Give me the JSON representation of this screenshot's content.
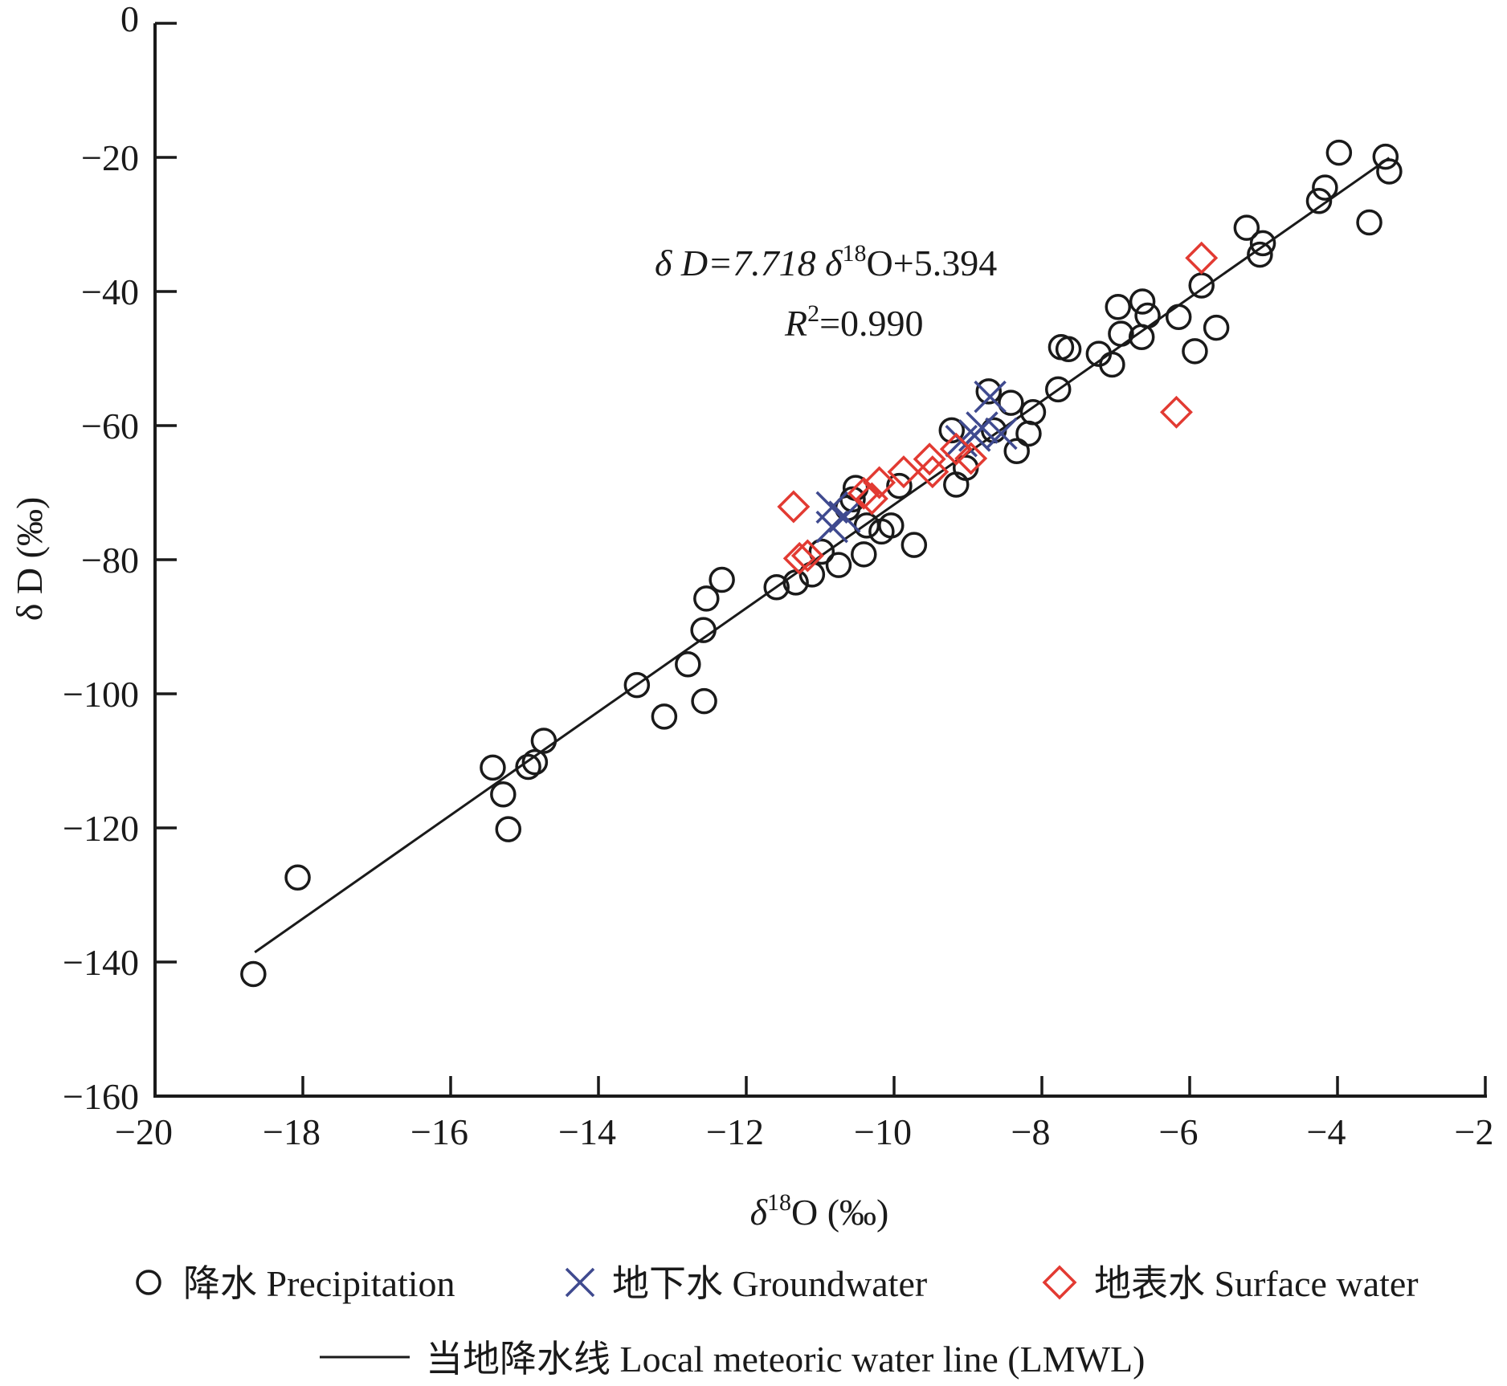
{
  "chart_data": {
    "type": "scatter",
    "xlabel": "δ18O (‰)",
    "xlabel_parts": {
      "delta": "δ",
      "sup": "18",
      "rest": "O (‰)"
    },
    "ylabel": "δ D (‰)",
    "xlim": [
      -20,
      -2
    ],
    "ylim": [
      -160,
      0
    ],
    "xticks": [
      -20,
      -18,
      -16,
      -14,
      -12,
      -10,
      -8,
      -6,
      -4,
      -2
    ],
    "yticks": [
      0,
      -20,
      -40,
      -60,
      -80,
      -100,
      -120,
      -140,
      -160
    ],
    "xtick_labels": [
      "−20",
      "−18",
      "−16",
      "−14",
      "−12",
      "−10",
      "−8",
      "−6",
      "−4",
      "−2"
    ],
    "ytick_labels": [
      "0",
      "−20",
      "−40",
      "−60",
      "−80",
      "−100",
      "−120",
      "−140",
      "−160"
    ],
    "grid": false,
    "legend_placement": "bottom",
    "annotation": {
      "equation_a": "δ D=7.718 δ",
      "equation_sup": "18",
      "equation_b": "O+5.394",
      "r2_label": "R",
      "r2_sup": "2",
      "r2_value": "=0.990"
    },
    "fit_line": {
      "name": "当地降水线 Local meteoric water line (LMWL)",
      "slope": 7.718,
      "intercept": 5.394,
      "x_range": [
        -18.65,
        -3.3
      ],
      "color": "#1a1a1a"
    },
    "series": [
      {
        "name": "降水 Precipitation",
        "marker": "circle",
        "color": "#1a1a1a",
        "points": [
          [
            -18.67,
            -141.8
          ],
          [
            -18.07,
            -127.4
          ],
          [
            -15.43,
            -111
          ],
          [
            -15.29,
            -115
          ],
          [
            -15.22,
            -120.2
          ],
          [
            -14.95,
            -110.9
          ],
          [
            -14.86,
            -110.2
          ],
          [
            -14.74,
            -107
          ],
          [
            -13.48,
            -98.7
          ],
          [
            -13.11,
            -103.4
          ],
          [
            -12.79,
            -95.6
          ],
          [
            -12.58,
            -90.5
          ],
          [
            -12.54,
            -85.8
          ],
          [
            -12.57,
            -101.1
          ],
          [
            -12.33,
            -83
          ],
          [
            -11.59,
            -84.1
          ],
          [
            -11.33,
            -83.4
          ],
          [
            -11.11,
            -82.2
          ],
          [
            -10.98,
            -78.8
          ],
          [
            -10.75,
            -80.8
          ],
          [
            -10.63,
            -72.3
          ],
          [
            -10.56,
            -71
          ],
          [
            -10.52,
            -69.3
          ],
          [
            -10.41,
            -79.2
          ],
          [
            -10.37,
            -74.9
          ],
          [
            -10.17,
            -75.8
          ],
          [
            -10.04,
            -74.9
          ],
          [
            -9.93,
            -69
          ],
          [
            -9.73,
            -77.8
          ],
          [
            -9.22,
            -60.7
          ],
          [
            -9.16,
            -68.8
          ],
          [
            -9.03,
            -66.3
          ],
          [
            -8.72,
            -54.9
          ],
          [
            -8.65,
            -60.7
          ],
          [
            -8.42,
            -56.6
          ],
          [
            -8.34,
            -63.8
          ],
          [
            -8.18,
            -61.2
          ],
          [
            -8.12,
            -58
          ],
          [
            -7.78,
            -54.6
          ],
          [
            -7.74,
            -48.3
          ],
          [
            -7.64,
            -48.6
          ],
          [
            -7.23,
            -49.3
          ],
          [
            -7.05,
            -50.9
          ],
          [
            -6.97,
            -42.3
          ],
          [
            -6.93,
            -46.3
          ],
          [
            -6.65,
            -46.8
          ],
          [
            -6.64,
            -41.5
          ],
          [
            -6.57,
            -43.6
          ],
          [
            -6.15,
            -43.8
          ],
          [
            -5.93,
            -48.9
          ],
          [
            -5.84,
            -39.1
          ],
          [
            -5.64,
            -45.4
          ],
          [
            -5.23,
            -30.5
          ],
          [
            -5.05,
            -34.5
          ],
          [
            -5.01,
            -32.8
          ],
          [
            -4.25,
            -26.5
          ],
          [
            -4.17,
            -24.5
          ],
          [
            -3.98,
            -19.3
          ],
          [
            -3.57,
            -29.7
          ],
          [
            -3.35,
            -19.9
          ],
          [
            -3.3,
            -22.1
          ]
        ]
      },
      {
        "name": "地下水 Groundwater",
        "marker": "x",
        "color": "#3f4a8f",
        "points": [
          [
            -8.7,
            -55.7
          ],
          [
            -8.91,
            -61.5
          ],
          [
            -8.81,
            -60.3
          ],
          [
            -8.55,
            -61.2
          ],
          [
            -9.09,
            -62.3
          ],
          [
            -10.84,
            -72.2
          ],
          [
            -10.84,
            -75.1
          ],
          [
            -10.67,
            -73.6
          ]
        ]
      },
      {
        "name": "地表水 Surface water",
        "marker": "diamond",
        "color": "#e23a32",
        "points": [
          [
            -5.84,
            -35
          ],
          [
            -6.18,
            -58
          ],
          [
            -11.36,
            -72.1
          ],
          [
            -11.28,
            -79.8
          ],
          [
            -11.17,
            -79.4
          ],
          [
            -10.41,
            -70.1
          ],
          [
            -10.3,
            -70.9
          ],
          [
            -10.2,
            -68.5
          ],
          [
            -9.87,
            -66.9
          ],
          [
            -9.52,
            -65
          ],
          [
            -9.48,
            -66.9
          ],
          [
            -9.16,
            -63.5
          ],
          [
            -8.96,
            -64.9
          ]
        ]
      }
    ]
  }
}
